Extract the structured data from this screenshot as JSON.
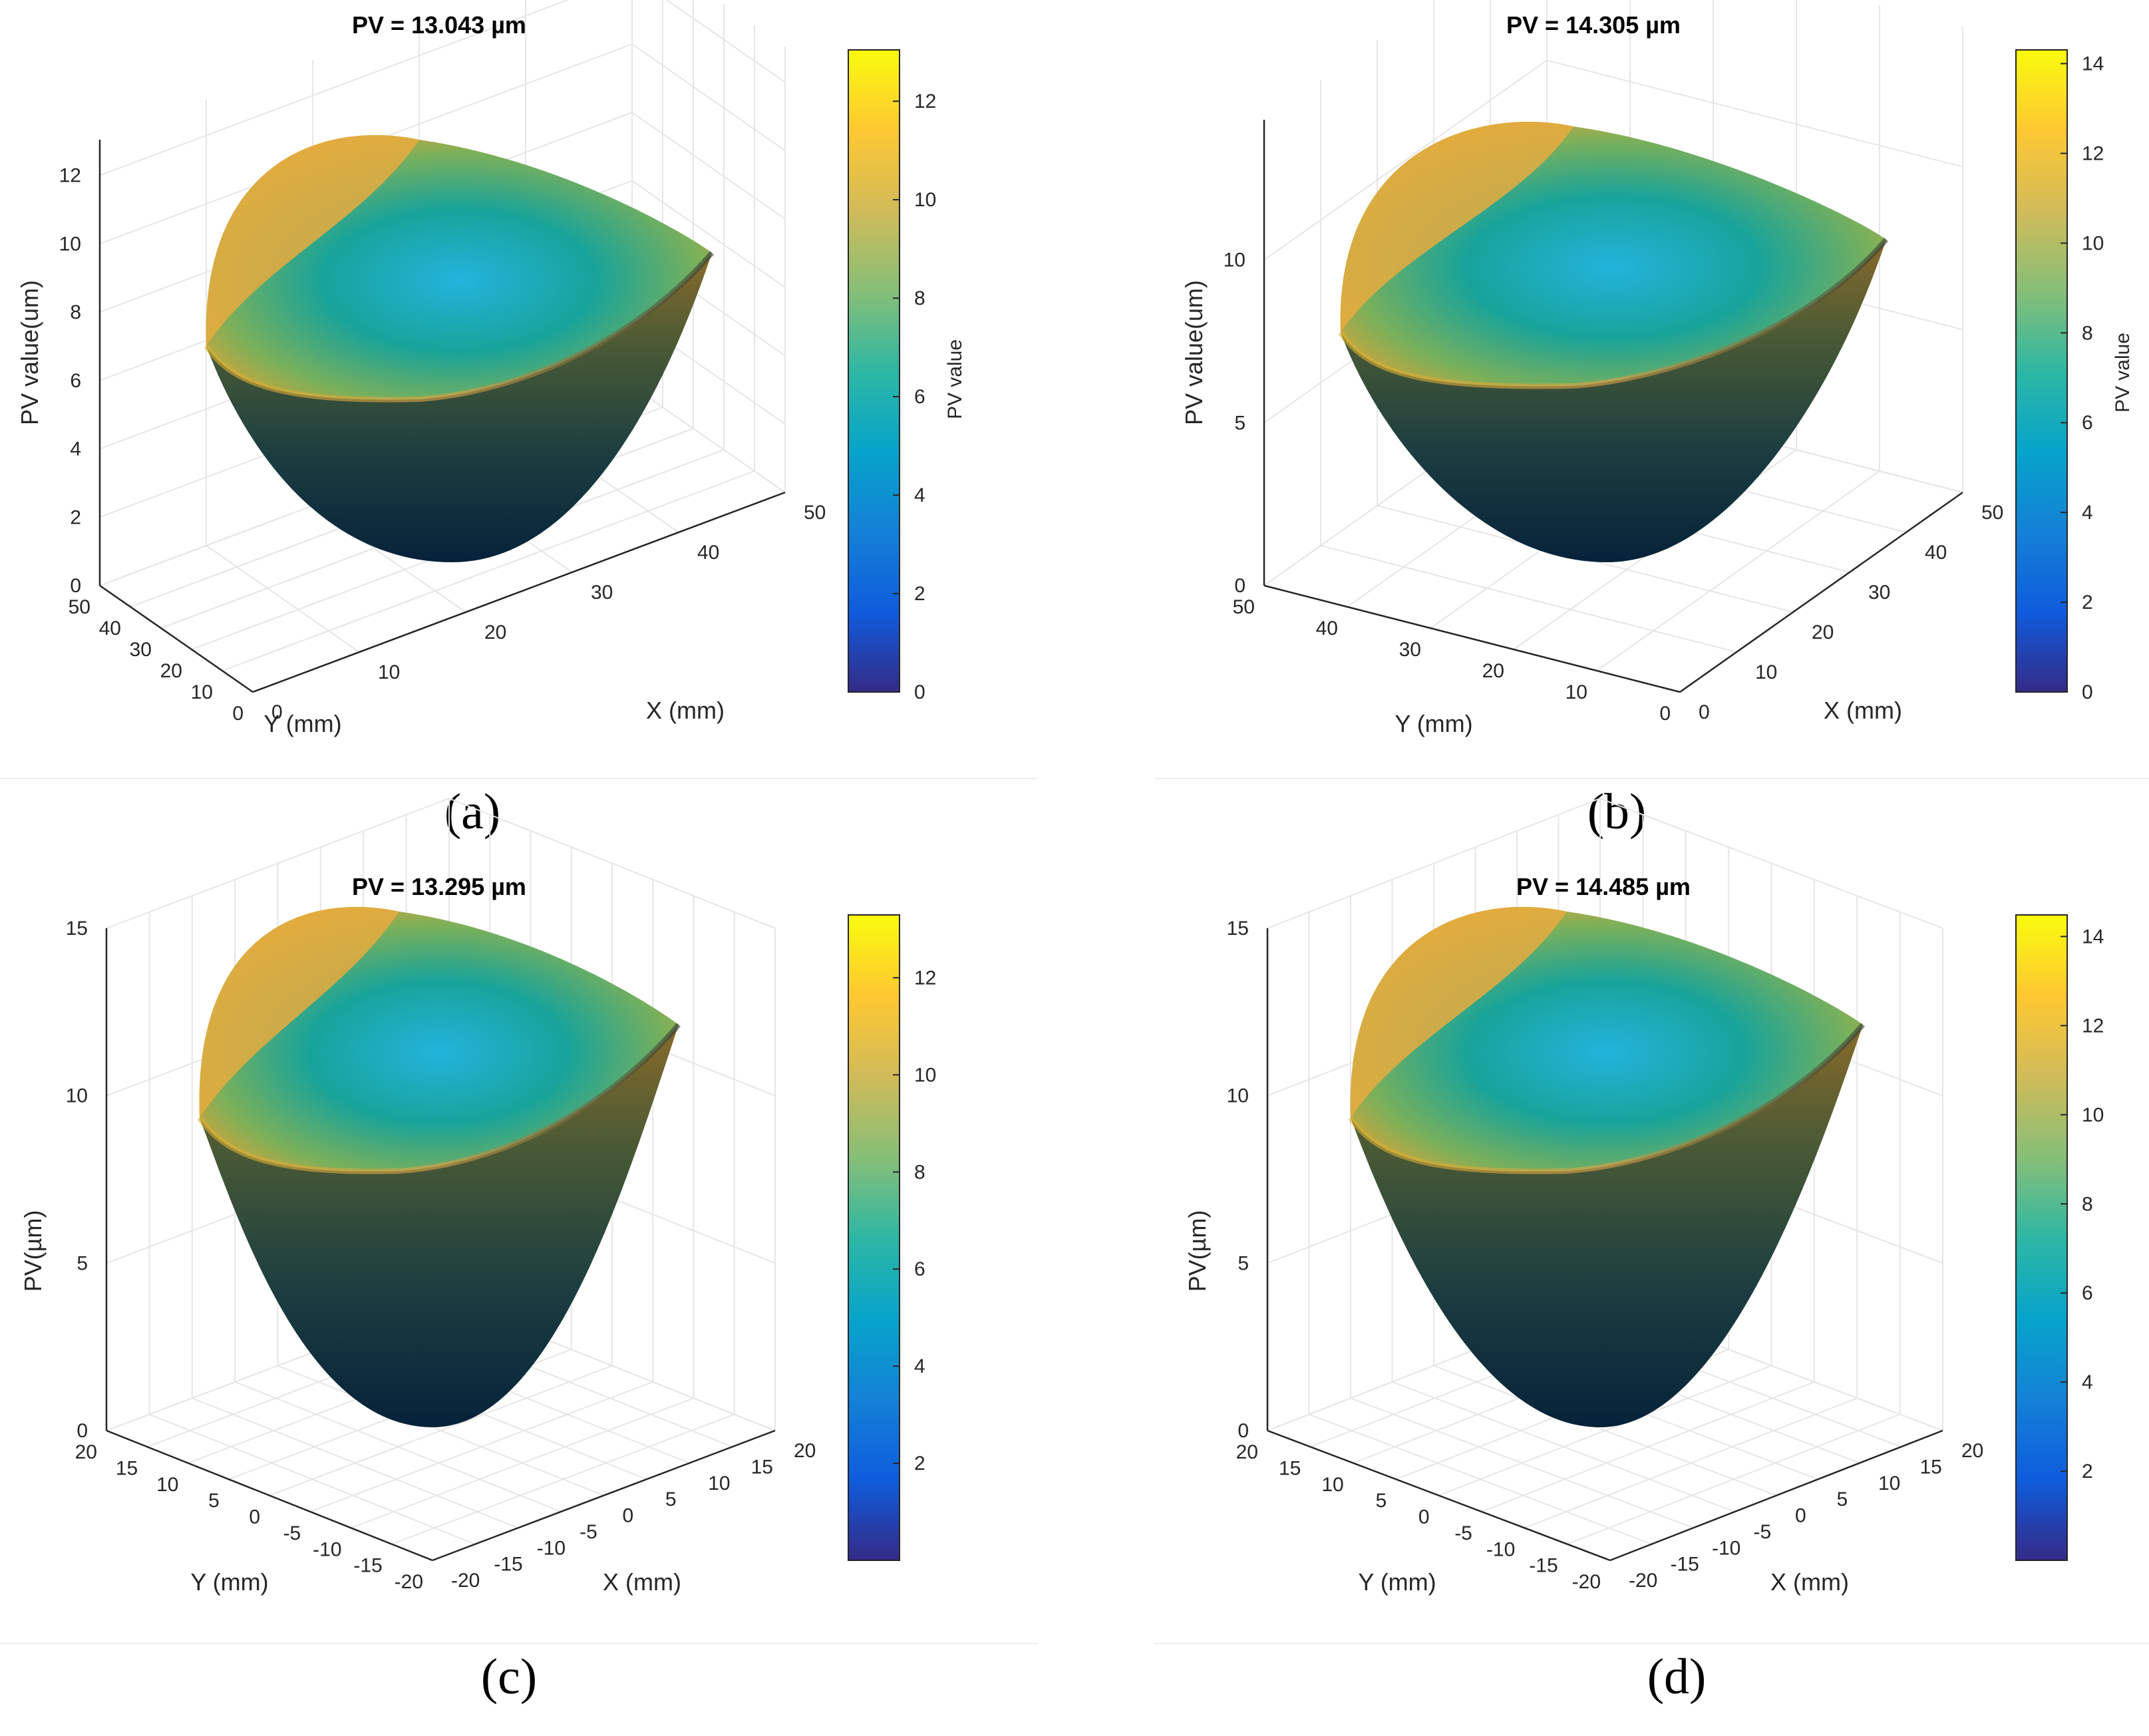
{
  "figure": {
    "colormap": [
      "#352a87",
      "#0f5cdd",
      "#1481d6",
      "#06a4ca",
      "#2eb7a4",
      "#87bf77",
      "#d1bb59",
      "#fec832",
      "#f9fb0e"
    ],
    "grid_color": "#e6e6e6",
    "axis_color": "#262626"
  },
  "chart_data": [
    {
      "panel": "(a)",
      "type": "surface",
      "title": "PV = 13.043 µm",
      "pv_value": 13.043,
      "xlabel": "X (mm)",
      "ylabel": "Y (mm)",
      "zlabel": "PV value(um)",
      "x_range": [
        0,
        50
      ],
      "y_range": [
        0,
        50
      ],
      "z_range": [
        0,
        13.043
      ],
      "x_ticks": [
        "0",
        "10",
        "20",
        "30",
        "40",
        "50"
      ],
      "y_ticks": [
        "0",
        "10",
        "20",
        "30",
        "40",
        "50"
      ],
      "z_ticks": [
        "0",
        "2",
        "4",
        "6",
        "8",
        "10",
        "12"
      ],
      "colorbar_ticks": [
        "0",
        "2",
        "4",
        "6",
        "8",
        "10",
        "12"
      ],
      "colorbar_range": [
        0,
        13.043
      ],
      "colorbar_label": "PV value",
      "grid": true
    },
    {
      "panel": "(b)",
      "type": "surface",
      "title": "PV = 14.305 µm",
      "pv_value": 14.305,
      "xlabel": "X (mm)",
      "ylabel": "Y (mm)",
      "zlabel": "PV value(um)",
      "x_range": [
        0,
        50
      ],
      "y_range": [
        0,
        50
      ],
      "z_range": [
        0,
        14.305
      ],
      "x_ticks": [
        "0",
        "10",
        "20",
        "30",
        "40",
        "50"
      ],
      "y_ticks": [
        "0",
        "10",
        "20",
        "30",
        "40",
        "50"
      ],
      "z_ticks": [
        "0",
        "5",
        "10"
      ],
      "colorbar_ticks": [
        "0",
        "2",
        "4",
        "6",
        "8",
        "10",
        "12",
        "14"
      ],
      "colorbar_range": [
        0,
        14.305
      ],
      "colorbar_label": "PV value",
      "grid": true
    },
    {
      "panel": "(c)",
      "type": "surface",
      "title": "PV = 13.295 µm",
      "pv_value": 13.295,
      "xlabel": "X (mm)",
      "ylabel": "Y (mm)",
      "zlabel": "PV(µm)",
      "x_range": [
        -20,
        20
      ],
      "y_range": [
        -20,
        20
      ],
      "z_range": [
        0,
        15
      ],
      "x_ticks": [
        "-20",
        "-15",
        "-10",
        "-5",
        "0",
        "5",
        "10",
        "15",
        "20"
      ],
      "y_ticks": [
        "-20",
        "-15",
        "-10",
        "-5",
        "0",
        "5",
        "10",
        "15",
        "20"
      ],
      "z_ticks": [
        "0",
        "5",
        "10",
        "15"
      ],
      "colorbar_ticks": [
        "2",
        "4",
        "6",
        "8",
        "10",
        "12"
      ],
      "colorbar_range": [
        0,
        13.295
      ],
      "colorbar_label": "",
      "grid": true
    },
    {
      "panel": "(d)",
      "type": "surface",
      "title": "PV = 14.485 µm",
      "pv_value": 14.485,
      "xlabel": "X (mm)",
      "ylabel": "Y (mm)",
      "zlabel": "PV(µm)",
      "x_range": [
        -20,
        20
      ],
      "y_range": [
        -20,
        20
      ],
      "z_range": [
        0,
        15
      ],
      "x_ticks": [
        "-20",
        "-15",
        "-10",
        "-5",
        "0",
        "5",
        "10",
        "15",
        "20"
      ],
      "y_ticks": [
        "-20",
        "-15",
        "-10",
        "-5",
        "0",
        "5",
        "10",
        "15",
        "20"
      ],
      "z_ticks": [
        "0",
        "5",
        "10",
        "15"
      ],
      "colorbar_ticks": [
        "2",
        "4",
        "6",
        "8",
        "10",
        "12",
        "14"
      ],
      "colorbar_range": [
        0,
        14.485
      ],
      "colorbar_label": "",
      "grid": true
    }
  ]
}
